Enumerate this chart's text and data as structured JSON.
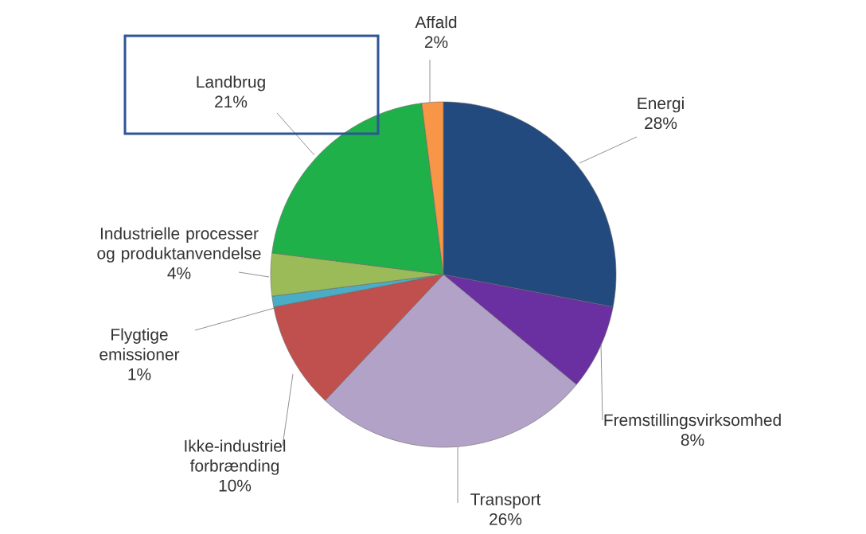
{
  "chart_data": {
    "type": "pie",
    "categories": [
      "Energi",
      "Fremstillingsvirksomhed",
      "Transport",
      "Ikke-industriel forbrænding",
      "Flygtige emissioner",
      "Industrielle processer og produktanvendelse",
      "Landbrug",
      "Affald"
    ],
    "values": [
      28,
      8,
      26,
      10,
      1,
      4,
      21,
      2
    ],
    "value_labels": [
      "28%",
      "8%",
      "26%",
      "10%",
      "1%",
      "4%",
      "21%",
      "2%"
    ],
    "colors": [
      "#224a7e",
      "#6a2fa0",
      "#b3a2c7",
      "#c0504d",
      "#4bacc6",
      "#9bbb59",
      "#1fb04a",
      "#f79646"
    ]
  }
}
